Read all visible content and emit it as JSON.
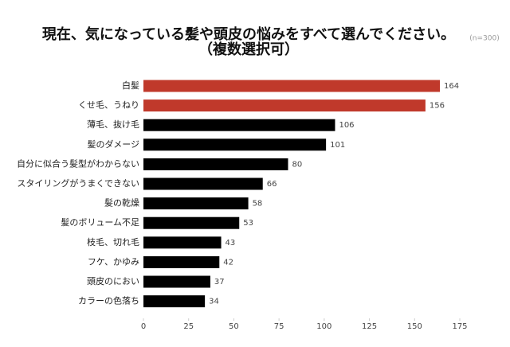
{
  "chart_data": {
    "type": "bar",
    "orientation": "horizontal",
    "title": "現在、気になっている髪や頭皮の悩みをすべて選んでください。",
    "subtitle": "（複数選択可）",
    "note": "(n=300)",
    "categories": [
      "白髪",
      "くせ毛、うねり",
      "薄毛、抜け毛",
      "髪のダメージ",
      "自分に似合う髪型がわからない",
      "スタイリングがうまくできない",
      "髪の乾燥",
      "髪のボリューム不足",
      "枝毛、切れ毛",
      "フケ、かゆみ",
      "頭皮のにおい",
      "カラーの色落ち"
    ],
    "values": [
      164,
      156,
      106,
      101,
      80,
      66,
      58,
      53,
      43,
      42,
      37,
      34
    ],
    "colors": [
      "#c0392b",
      "#c0392b",
      "#000000",
      "#000000",
      "#000000",
      "#000000",
      "#000000",
      "#000000",
      "#000000",
      "#000000",
      "#000000",
      "#000000"
    ],
    "xlim": [
      0,
      175
    ],
    "xticks": [
      0,
      25,
      50,
      75,
      100,
      125,
      150,
      175
    ],
    "grid": false
  }
}
